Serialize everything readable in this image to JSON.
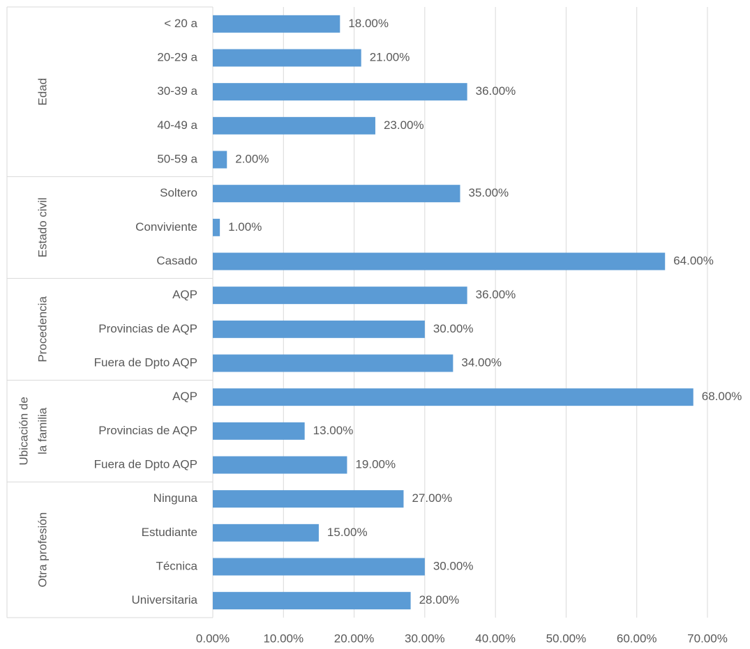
{
  "chart_data": {
    "type": "bar",
    "orientation": "horizontal",
    "color": "#5b9bd5",
    "grid": true,
    "xlim": [
      0,
      70
    ],
    "xticks": [
      {
        "value": 0,
        "label": "0.00%"
      },
      {
        "value": 10,
        "label": "10.00%"
      },
      {
        "value": 20,
        "label": "20.00%"
      },
      {
        "value": 30,
        "label": "30.00%"
      },
      {
        "value": 40,
        "label": "40.00%"
      },
      {
        "value": 50,
        "label": "50.00%"
      },
      {
        "value": 60,
        "label": "60.00%"
      },
      {
        "value": 70,
        "label": "70.00%"
      }
    ],
    "groups": [
      {
        "name": [
          "Edad"
        ],
        "categories": [
          "< 20 a",
          "20-29 a",
          "30-39 a",
          "40-49 a",
          "50-59 a"
        ],
        "values": [
          18,
          21,
          36,
          23,
          2
        ],
        "value_labels": [
          "18.00%",
          "21.00%",
          "36.00%",
          "23.00%",
          "2.00%"
        ]
      },
      {
        "name": [
          "Estado civil"
        ],
        "categories": [
          "Soltero",
          "Conviviente",
          "Casado"
        ],
        "values": [
          35,
          1,
          64
        ],
        "value_labels": [
          "35.00%",
          "1.00%",
          "64.00%"
        ]
      },
      {
        "name": [
          "Procedencia"
        ],
        "categories": [
          "AQP",
          "Provincias de AQP",
          "Fuera de Dpto AQP"
        ],
        "values": [
          36,
          30,
          34
        ],
        "value_labels": [
          "36.00%",
          "30.00%",
          "34.00%"
        ]
      },
      {
        "name": [
          "Ubicación de",
          "la familia"
        ],
        "categories": [
          "AQP",
          "Provincias de AQP",
          "Fuera de Dpto AQP"
        ],
        "values": [
          68,
          13,
          19
        ],
        "value_labels": [
          "68.00%",
          "13.00%",
          "19.00%"
        ]
      },
      {
        "name": [
          "Otra profesión"
        ],
        "categories": [
          "Ninguna",
          "Estudiante",
          "Técnica",
          "Universitaria"
        ],
        "values": [
          27,
          15,
          30,
          28
        ],
        "value_labels": [
          "27.00%",
          "15.00%",
          "30.00%",
          "28.00%"
        ]
      }
    ]
  }
}
